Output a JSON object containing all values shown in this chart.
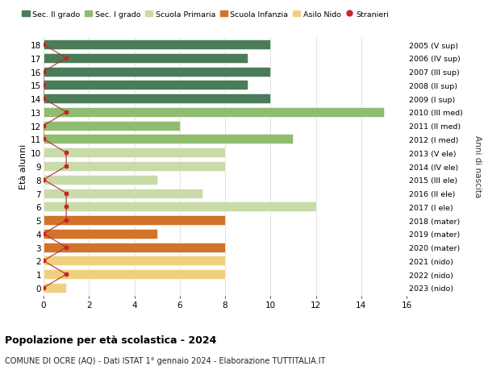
{
  "ages": [
    18,
    17,
    16,
    15,
    14,
    13,
    12,
    11,
    10,
    9,
    8,
    7,
    6,
    5,
    4,
    3,
    2,
    1,
    0
  ],
  "right_labels": [
    "2005 (V sup)",
    "2006 (IV sup)",
    "2007 (III sup)",
    "2008 (II sup)",
    "2009 (I sup)",
    "2010 (III med)",
    "2011 (II med)",
    "2012 (I med)",
    "2013 (V ele)",
    "2014 (IV ele)",
    "2015 (III ele)",
    "2016 (II ele)",
    "2017 (I ele)",
    "2018 (mater)",
    "2019 (mater)",
    "2020 (mater)",
    "2021 (nido)",
    "2022 (nido)",
    "2023 (nido)"
  ],
  "bar_values": [
    10,
    9,
    10,
    9,
    10,
    15,
    6,
    11,
    8,
    8,
    5,
    7,
    12,
    8,
    5,
    8,
    8,
    8,
    1
  ],
  "bar_colors": [
    "#4a7c59",
    "#4a7c59",
    "#4a7c59",
    "#4a7c59",
    "#4a7c59",
    "#8fbc6e",
    "#8fbc6e",
    "#8fbc6e",
    "#c8dba8",
    "#c8dba8",
    "#c8dba8",
    "#c8dba8",
    "#c8dba8",
    "#d2732a",
    "#d2732a",
    "#d2732a",
    "#f0d080",
    "#f0d080",
    "#f0d080"
  ],
  "stranieri_x": [
    0,
    1,
    0,
    0,
    0,
    1,
    0,
    0,
    1,
    1,
    0,
    1,
    1,
    1,
    0,
    1,
    0,
    1,
    0
  ],
  "title": "Popolazione per età scolastica - 2024",
  "subtitle": "COMUNE DI OCRE (AQ) - Dati ISTAT 1° gennaio 2024 - Elaborazione TUTTITALIA.IT",
  "ylabel": "Età alunni",
  "right_ylabel": "Anni di nascita",
  "xlim": [
    0,
    16
  ],
  "xticks": [
    0,
    2,
    4,
    6,
    8,
    10,
    12,
    14,
    16
  ],
  "legend_labels": [
    "Sec. II grado",
    "Sec. I grado",
    "Scuola Primaria",
    "Scuola Infanzia",
    "Asilo Nido",
    "Stranieri"
  ],
  "legend_colors": [
    "#4a7c59",
    "#8fbc6e",
    "#c8dba8",
    "#d2732a",
    "#f0d080",
    "#cc2222"
  ],
  "bar_height": 0.72,
  "stranieri_color": "#cc2222",
  "line_color": "#aa3333",
  "bg_color": "#ffffff",
  "grid_color": "#dddddd"
}
